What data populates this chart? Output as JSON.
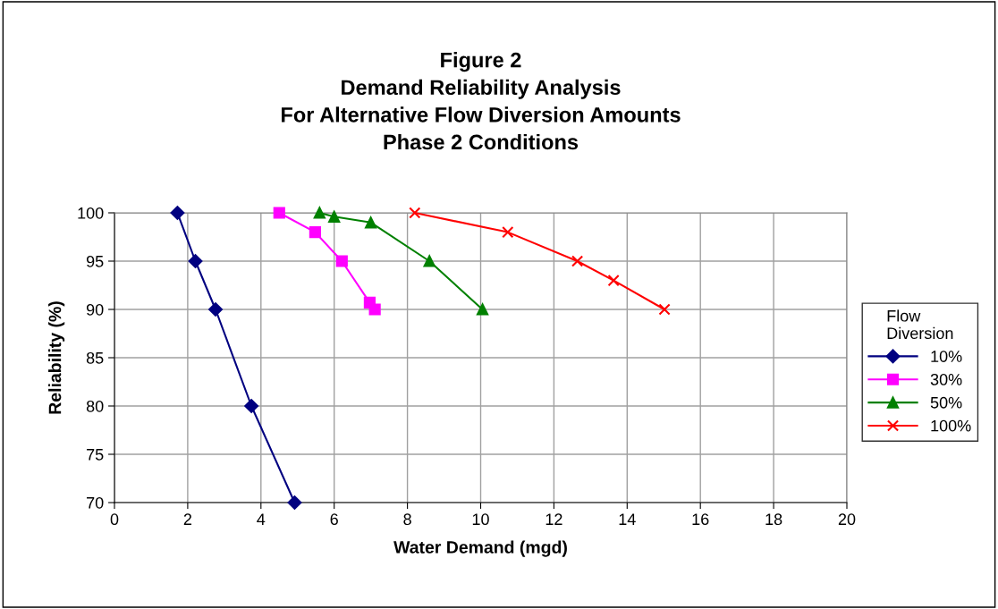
{
  "chart_data": {
    "type": "line",
    "title": "Figure 2\nDemand Reliability Analysis\nFor Alternative Flow Diversion Amounts\nPhase 2 Conditions",
    "xlabel": "Water Demand (mgd)",
    "ylabel": "Reliability (%)",
    "legend_title": "Flow\nDiversion",
    "legend": "right",
    "grid": true,
    "xlim": [
      0,
      20
    ],
    "xticks": [
      0,
      2,
      4,
      6,
      8,
      10,
      12,
      14,
      16,
      18,
      20
    ],
    "ylim": [
      70,
      100
    ],
    "yticks": [
      70,
      75,
      80,
      85,
      90,
      95,
      100
    ],
    "series": [
      {
        "name": "10%",
        "color": "#000080",
        "marker": "diamond",
        "x": [
          1.72,
          2.21,
          2.76,
          3.74,
          4.92
        ],
        "values": [
          100,
          95,
          90,
          80,
          70
        ]
      },
      {
        "name": "30%",
        "color": "#ff00ff",
        "marker": "square",
        "x": [
          4.5,
          5.48,
          6.21,
          6.97,
          7.11
        ],
        "values": [
          100,
          98,
          95,
          90.7,
          90
        ]
      },
      {
        "name": "50%",
        "color": "#008000",
        "marker": "triangle",
        "x": [
          5.6,
          6.0,
          7.0,
          8.6,
          10.05
        ],
        "values": [
          100,
          99.6,
          99.0,
          95,
          90
        ]
      },
      {
        "name": "100%",
        "color": "#ff0000",
        "marker": "cross",
        "x": [
          8.2,
          10.74,
          12.64,
          13.63,
          15.02
        ],
        "values": [
          100,
          98,
          95,
          93,
          90
        ]
      }
    ]
  }
}
